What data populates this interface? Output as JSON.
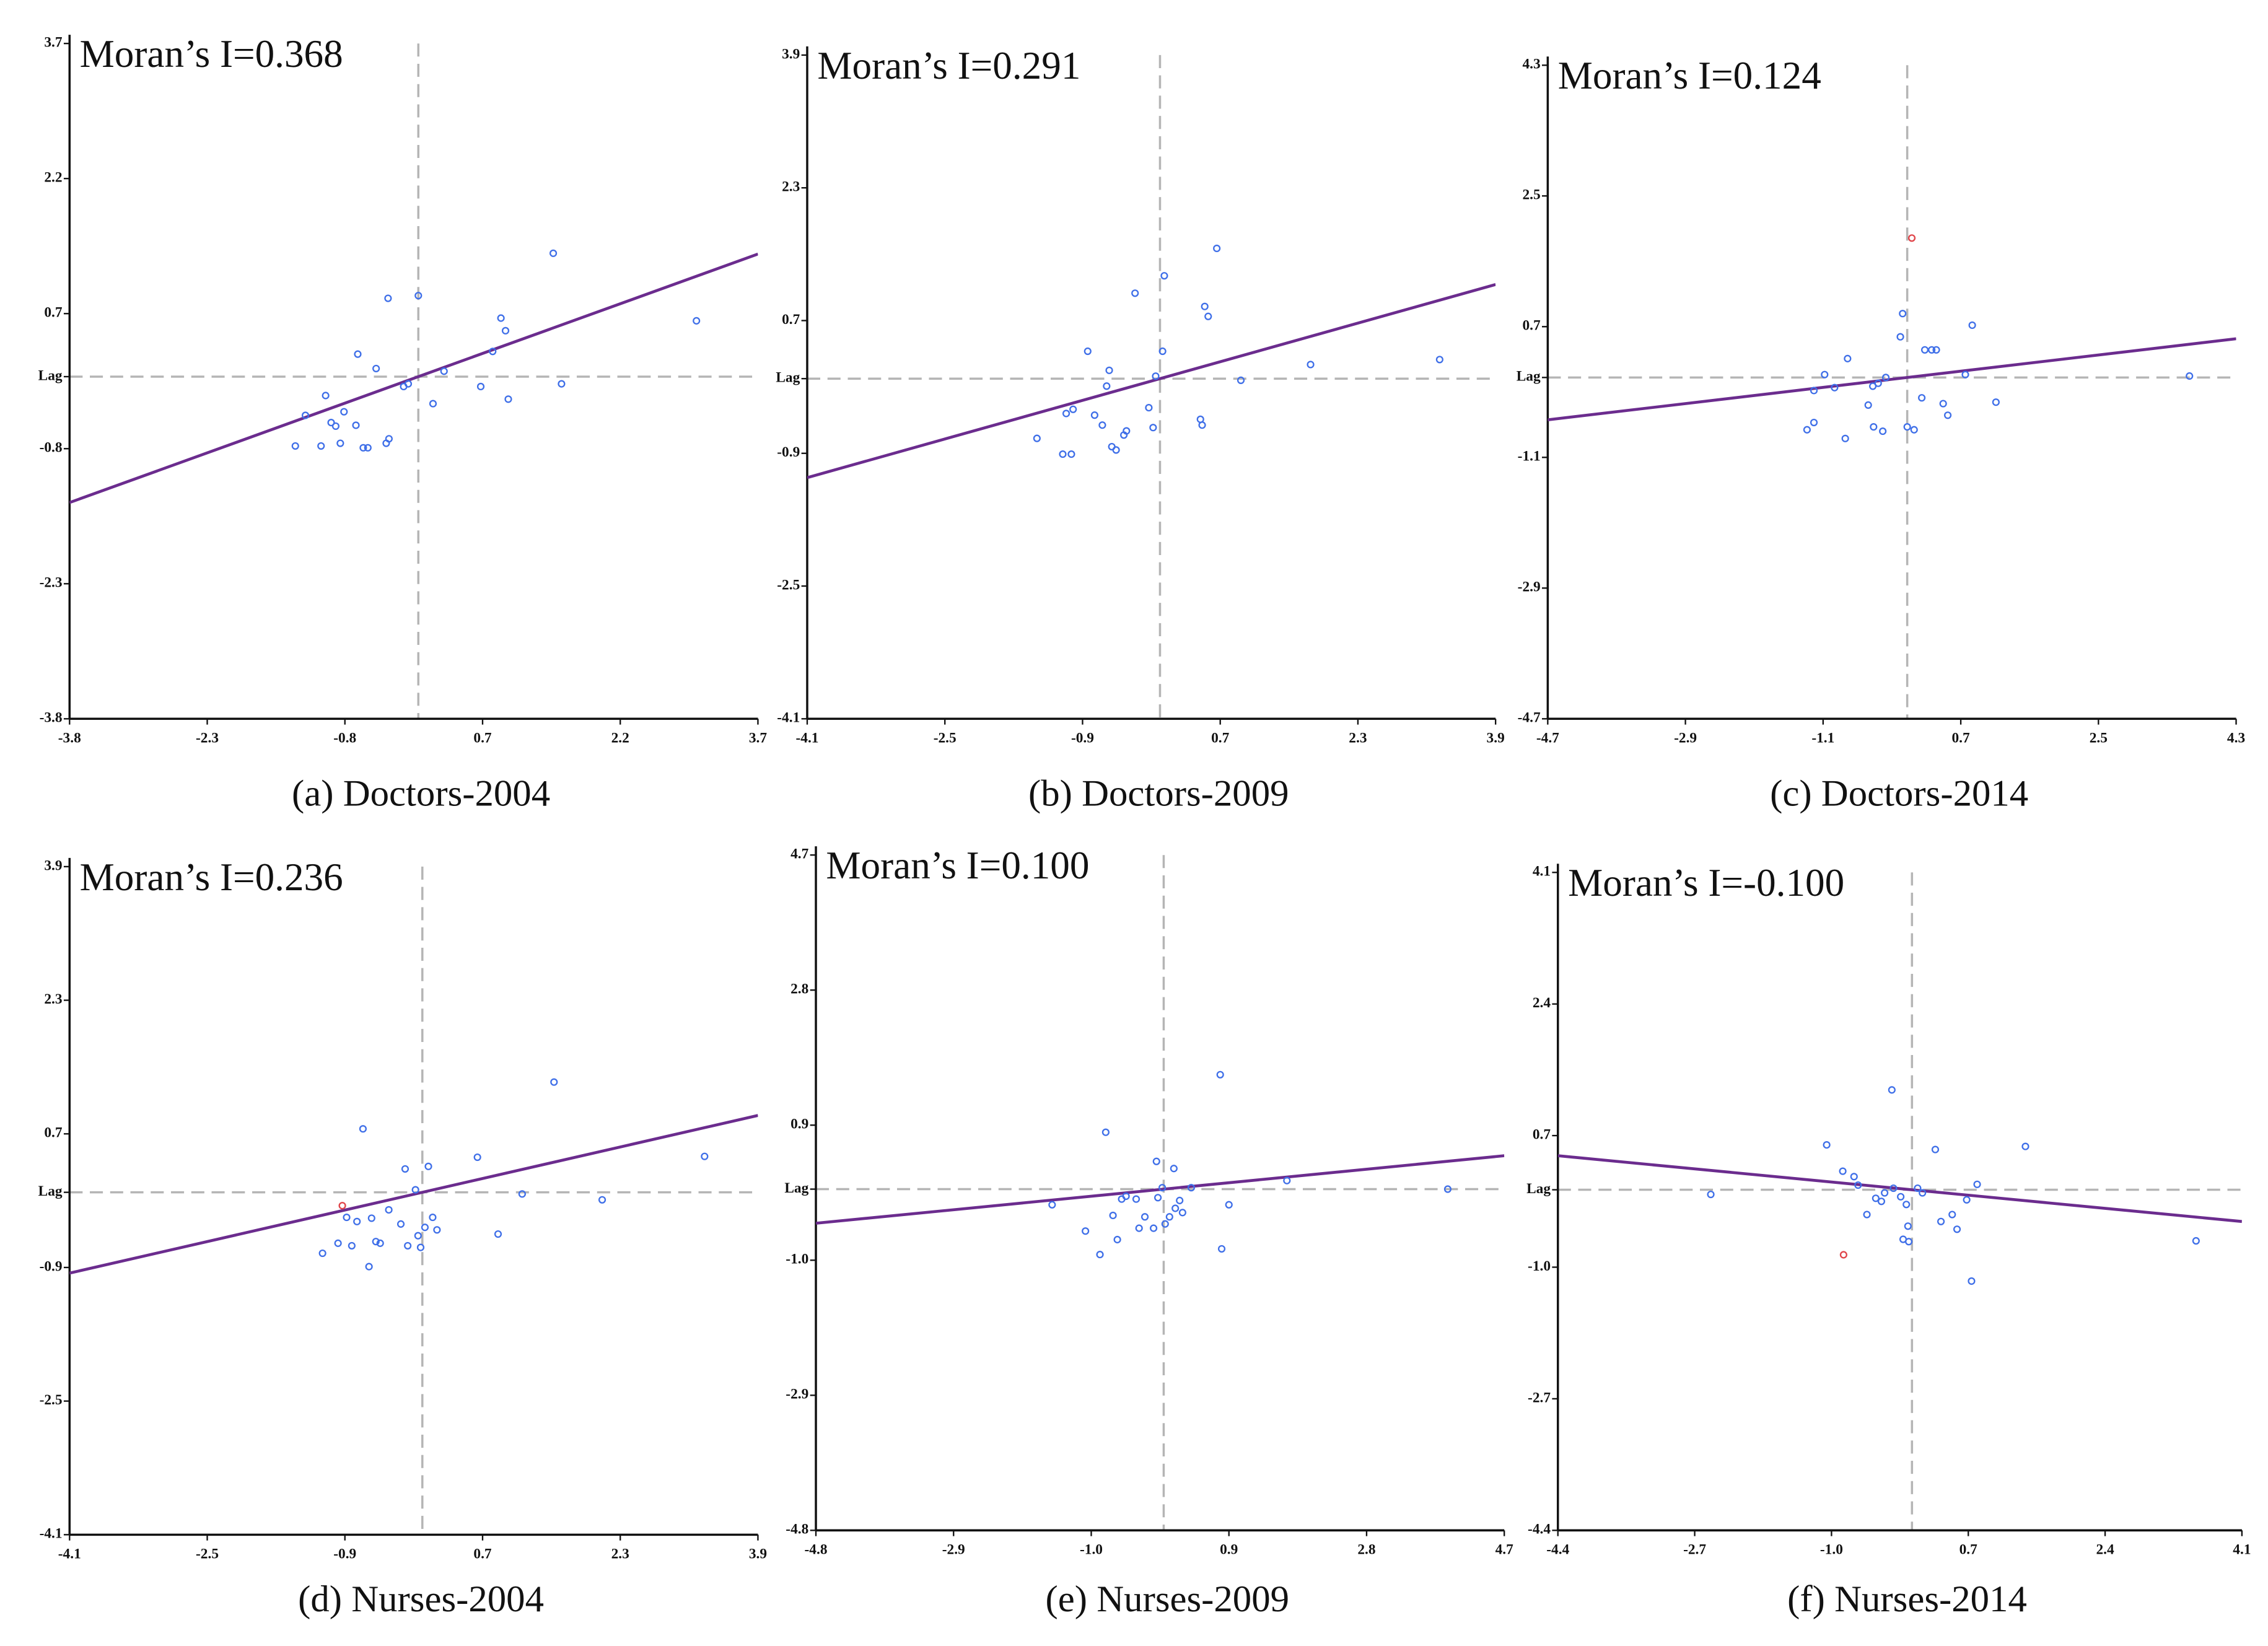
{
  "chart_data": [
    {
      "type": "scatter",
      "annotation": "Moran’s I=0.368",
      "caption": "(a) Doctors-2004",
      "regression_slope": 0.368,
      "line_color": "#6b2c8e",
      "xlim": [
        -3.8,
        3.7
      ],
      "ylim": [
        -3.8,
        3.7
      ],
      "xticks": [
        -3.8,
        -2.3,
        -0.8,
        0.7,
        2.2,
        3.7
      ],
      "yticks": [
        3.7,
        2.2,
        0.7,
        {
          "value": 0,
          "label": "Lag"
        },
        -0.8,
        -2.3,
        -3.8
      ],
      "series": [
        {
          "color": "#3f6fe8",
          "x": [
            -1.34,
            -1.23,
            -1.06,
            -1.01,
            -0.95,
            -0.9,
            -0.85,
            -0.81,
            -0.68,
            -0.66,
            -0.6,
            -0.55,
            -0.46,
            -0.35,
            -0.32,
            -0.33,
            -0.16,
            -0.11,
            0,
            0.16,
            0.28,
            0.68,
            0.81,
            0.9,
            0.95,
            0.98,
            1.47,
            1.56,
            3.03
          ],
          "y": [
            -0.77,
            -0.43,
            -0.77,
            -0.21,
            -0.51,
            -0.55,
            -0.74,
            -0.39,
            -0.54,
            0.25,
            -0.79,
            -0.79,
            0.09,
            -0.74,
            -0.69,
            0.87,
            -0.11,
            -0.08,
            0.9,
            -0.3,
            0.06,
            -0.11,
            0.28,
            0.65,
            0.51,
            -0.25,
            1.37,
            -0.08,
            0.62
          ]
        }
      ]
    },
    {
      "type": "scatter",
      "annotation": "Moran’s I=0.291",
      "caption": "(b) Doctors-2009",
      "regression_slope": 0.291,
      "line_color": "#6b2c8e",
      "xlim": [
        -4.1,
        3.9
      ],
      "ylim": [
        -4.1,
        3.9
      ],
      "xticks": [
        -4.1,
        -2.5,
        -0.9,
        0.7,
        2.3,
        3.9
      ],
      "yticks": [
        3.9,
        2.3,
        0.7,
        {
          "value": 0,
          "label": "Lag"
        },
        -0.9,
        -2.5,
        -4.1
      ],
      "series": [
        {
          "color": "#3f6fe8",
          "x": [
            -1.43,
            -1.13,
            -1.03,
            -1.09,
            -1.01,
            -0.84,
            -0.76,
            -0.67,
            -0.62,
            -0.59,
            -0.56,
            -0.51,
            -0.42,
            -0.39,
            -0.29,
            -0.13,
            -0.08,
            -0.05,
            0.03,
            0.05,
            0.47,
            0.49,
            0.52,
            0.56,
            0.66,
            0.94,
            1.75,
            3.25
          ],
          "y": [
            -0.72,
            -0.91,
            -0.91,
            -0.42,
            -0.37,
            0.33,
            -0.44,
            -0.56,
            -0.09,
            0.1,
            -0.82,
            -0.86,
            -0.68,
            -0.63,
            1.03,
            -0.35,
            -0.59,
            0.03,
            0.33,
            1.24,
            -0.49,
            -0.56,
            0.87,
            0.75,
            1.57,
            -0.02,
            0.17,
            0.23
          ]
        }
      ]
    },
    {
      "type": "scatter",
      "annotation": "Moran’s I=0.124",
      "caption": "(c) Doctors-2014",
      "regression_slope": 0.124,
      "line_color": "#6b2c8e",
      "xlim": [
        -4.7,
        4.3
      ],
      "ylim": [
        -4.7,
        4.3
      ],
      "xticks": [
        -4.7,
        -2.9,
        -1.1,
        0.7,
        2.5,
        4.3
      ],
      "yticks": [
        4.3,
        2.5,
        0.7,
        {
          "value": 0,
          "label": "Lag"
        },
        -1.1,
        -2.9,
        -4.7
      ],
      "series": [
        {
          "color": "#3f6fe8",
          "x": [
            -1.31,
            -1.22,
            -1.22,
            -1.08,
            -0.95,
            -0.81,
            -0.78,
            -0.51,
            -0.45,
            -0.44,
            -0.38,
            -0.32,
            -0.28,
            -0.09,
            -0.06,
            0,
            0.09,
            0.19,
            0.23,
            0.32,
            0.38,
            0.47,
            0.53,
            0.76,
            0.85,
            1.16,
            3.69
          ],
          "y": [
            -0.72,
            -0.62,
            -0.18,
            0.04,
            -0.14,
            -0.84,
            0.26,
            -0.38,
            -0.12,
            -0.68,
            -0.08,
            -0.74,
            0,
            0.56,
            0.88,
            -0.68,
            -0.72,
            -0.28,
            0.38,
            0.38,
            0.38,
            -0.36,
            -0.52,
            0.04,
            0.72,
            -0.34,
            0.02
          ]
        },
        {
          "color": "#e0454a",
          "x": [
            0.06
          ],
          "y": [
            1.92
          ]
        }
      ]
    },
    {
      "type": "scatter",
      "annotation": "Moran’s I=0.236",
      "caption": "(d) Nurses-2004",
      "regression_slope": 0.236,
      "line_color": "#6b2c8e",
      "xlim": [
        -4.1,
        3.9
      ],
      "ylim": [
        -4.1,
        3.9
      ],
      "xticks": [
        -4.1,
        -2.5,
        -0.9,
        0.7,
        2.3,
        3.9
      ],
      "yticks": [
        3.9,
        2.3,
        0.7,
        {
          "value": 0,
          "label": "Lag"
        },
        -0.9,
        -2.5,
        -4.1
      ],
      "series": [
        {
          "color": "#3f6fe8",
          "x": [
            -1.16,
            -0.98,
            -0.88,
            -0.82,
            -0.76,
            -0.69,
            -0.62,
            -0.59,
            -0.54,
            -0.49,
            -0.39,
            -0.25,
            -0.2,
            -0.17,
            -0.08,
            -0.05,
            -0.02,
            0.03,
            0.07,
            0.12,
            0.17,
            0.64,
            0.88,
            1.16,
            1.53,
            2.09,
            3.28
          ],
          "y": [
            -0.73,
            -0.61,
            -0.3,
            -0.64,
            -0.35,
            0.76,
            -0.89,
            -0.31,
            -0.59,
            -0.61,
            -0.21,
            -0.38,
            0.28,
            -0.64,
            0.03,
            -0.52,
            -0.66,
            -0.42,
            0.31,
            -0.3,
            -0.45,
            0.42,
            -0.5,
            -0.02,
            1.32,
            -0.09,
            0.43
          ]
        },
        {
          "color": "#e0454a",
          "x": [
            -0.93
          ],
          "y": [
            -0.16
          ]
        }
      ]
    },
    {
      "type": "scatter",
      "annotation": "Moran’s I=0.100",
      "caption": "(e) Nurses-2009",
      "regression_slope": 0.1,
      "line_color": "#6b2c8e",
      "xlim": [
        -4.8,
        4.7
      ],
      "ylim": [
        -4.8,
        4.7
      ],
      "xticks": [
        -4.8,
        -2.9,
        {
          "value": -1,
          "label": "-1.0"
        },
        0.9,
        2.8,
        4.7
      ],
      "yticks": [
        4.7,
        2.8,
        0.9,
        {
          "value": 0,
          "label": "Lag"
        },
        {
          "value": -1,
          "label": "-1.0"
        },
        -2.9,
        -4.8
      ],
      "series": [
        {
          "color": "#3f6fe8",
          "x": [
            -1.54,
            -1.08,
            -0.88,
            -0.8,
            -0.7,
            -0.64,
            -0.58,
            -0.52,
            -0.38,
            -0.34,
            -0.26,
            -0.14,
            -0.1,
            -0.08,
            -0.02,
            0.02,
            0.08,
            0.14,
            0.16,
            0.22,
            0.26,
            0.38,
            0.78,
            0.8,
            0.9,
            1.7,
            3.92
          ],
          "y": [
            -0.22,
            -0.59,
            -0.92,
            0.8,
            -0.37,
            -0.71,
            -0.14,
            -0.1,
            -0.14,
            -0.55,
            -0.39,
            -0.55,
            0.39,
            -0.12,
            0.02,
            -0.49,
            -0.39,
            0.29,
            -0.27,
            -0.16,
            -0.33,
            0.02,
            1.61,
            -0.84,
            -0.22,
            0.12,
            0
          ]
        }
      ]
    },
    {
      "type": "scatter",
      "annotation": "Moran’s I=-0.100",
      "caption": "(f) Nurses-2014",
      "regression_slope": -0.1,
      "line_color": "#6b2c8e",
      "xlim": [
        -4.4,
        4.1
      ],
      "ylim": [
        -4.4,
        4.1
      ],
      "xticks": [
        -4.4,
        -2.7,
        {
          "value": -1,
          "label": "-1.0"
        },
        0.7,
        2.4,
        4.1
      ],
      "yticks": [
        4.1,
        2.4,
        0.7,
        {
          "value": 0,
          "label": "Lag"
        },
        {
          "value": -1,
          "label": "-1.0"
        },
        -2.7,
        -4.4
      ],
      "series": [
        {
          "color": "#3f6fe8",
          "x": [
            -2.5,
            -1.06,
            -0.86,
            -0.72,
            -0.67,
            -0.56,
            -0.45,
            -0.38,
            -0.34,
            -0.25,
            -0.23,
            -0.14,
            -0.11,
            -0.07,
            -0.05,
            -0.04,
            0.07,
            0.13,
            0.29,
            0.36,
            0.5,
            0.56,
            0.68,
            0.74,
            0.81,
            1.41,
            3.53
          ],
          "y": [
            -0.06,
            0.58,
            0.24,
            0.17,
            0.06,
            -0.32,
            -0.11,
            -0.15,
            -0.04,
            1.29,
            0.02,
            -0.09,
            -0.64,
            -0.19,
            -0.47,
            -0.67,
            0.02,
            -0.04,
            0.52,
            -0.41,
            -0.32,
            -0.51,
            -0.13,
            -1.18,
            0.07,
            0.56,
            -0.66
          ]
        },
        {
          "color": "#e0454a",
          "x": [
            -0.85
          ],
          "y": [
            -0.84
          ]
        }
      ]
    }
  ]
}
